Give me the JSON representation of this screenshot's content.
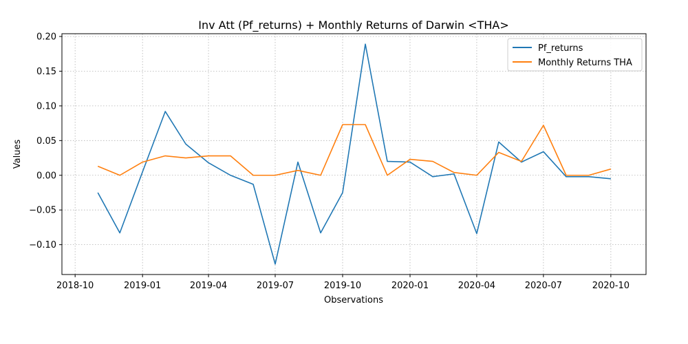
{
  "chart_data": {
    "type": "line",
    "title": "Inv Att (Pf_returns) + Monthly Returns of Darwin <THA>",
    "xlabel": "Observations",
    "ylabel": "Values",
    "x": [
      "2018-11-01",
      "2018-12-01",
      "2019-01-01",
      "2019-02-01",
      "2019-03-01",
      "2019-04-01",
      "2019-05-01",
      "2019-06-01",
      "2019-07-01",
      "2019-08-01",
      "2019-09-01",
      "2019-10-01",
      "2019-11-01",
      "2019-12-01",
      "2020-01-01",
      "2020-02-01",
      "2020-03-01",
      "2020-04-01",
      "2020-05-01",
      "2020-06-01",
      "2020-07-01",
      "2020-08-01",
      "2020-09-01",
      "2020-10-01"
    ],
    "series": [
      {
        "name": "Pf_returns",
        "color": "#1f77b4",
        "values": [
          -0.025,
          -0.083,
          0.005,
          0.092,
          0.045,
          0.018,
          0.0,
          -0.013,
          -0.128,
          0.019,
          -0.083,
          -0.025,
          0.189,
          0.02,
          0.019,
          -0.002,
          0.002,
          -0.084,
          0.048,
          0.019,
          0.034,
          -0.002,
          -0.002,
          -0.005
        ]
      },
      {
        "name": "Monthly Returns THA",
        "color": "#ff7f0e",
        "values": [
          0.013,
          0.0,
          0.019,
          0.028,
          0.025,
          0.028,
          0.028,
          0.0,
          0.0,
          0.007,
          0.0,
          0.073,
          0.073,
          0.0,
          0.023,
          0.02,
          0.004,
          0.0,
          0.033,
          0.02,
          0.072,
          0.0,
          0.0,
          0.009
        ]
      }
    ],
    "x_ticks": [
      {
        "date": "2018-10-01",
        "label": "2018-10"
      },
      {
        "date": "2019-01-01",
        "label": "2019-01"
      },
      {
        "date": "2019-04-01",
        "label": "2019-04"
      },
      {
        "date": "2019-07-01",
        "label": "2019-07"
      },
      {
        "date": "2019-10-01",
        "label": "2019-10"
      },
      {
        "date": "2020-01-01",
        "label": "2020-01"
      },
      {
        "date": "2020-04-01",
        "label": "2020-04"
      },
      {
        "date": "2020-07-01",
        "label": "2020-07"
      },
      {
        "date": "2020-10-01",
        "label": "2020-10"
      }
    ],
    "y_ticks": [
      -0.1,
      -0.05,
      0.0,
      0.05,
      0.1,
      0.15,
      0.2
    ],
    "y_tick_labels": [
      "−0.10",
      "−0.05",
      "0.00",
      "0.05",
      "0.10",
      "0.15",
      "0.20"
    ],
    "xlim": [
      "2018-09-13",
      "2020-11-18"
    ],
    "ylim": [
      -0.143,
      0.204
    ],
    "grid": true,
    "legend_position": "top-right"
  }
}
